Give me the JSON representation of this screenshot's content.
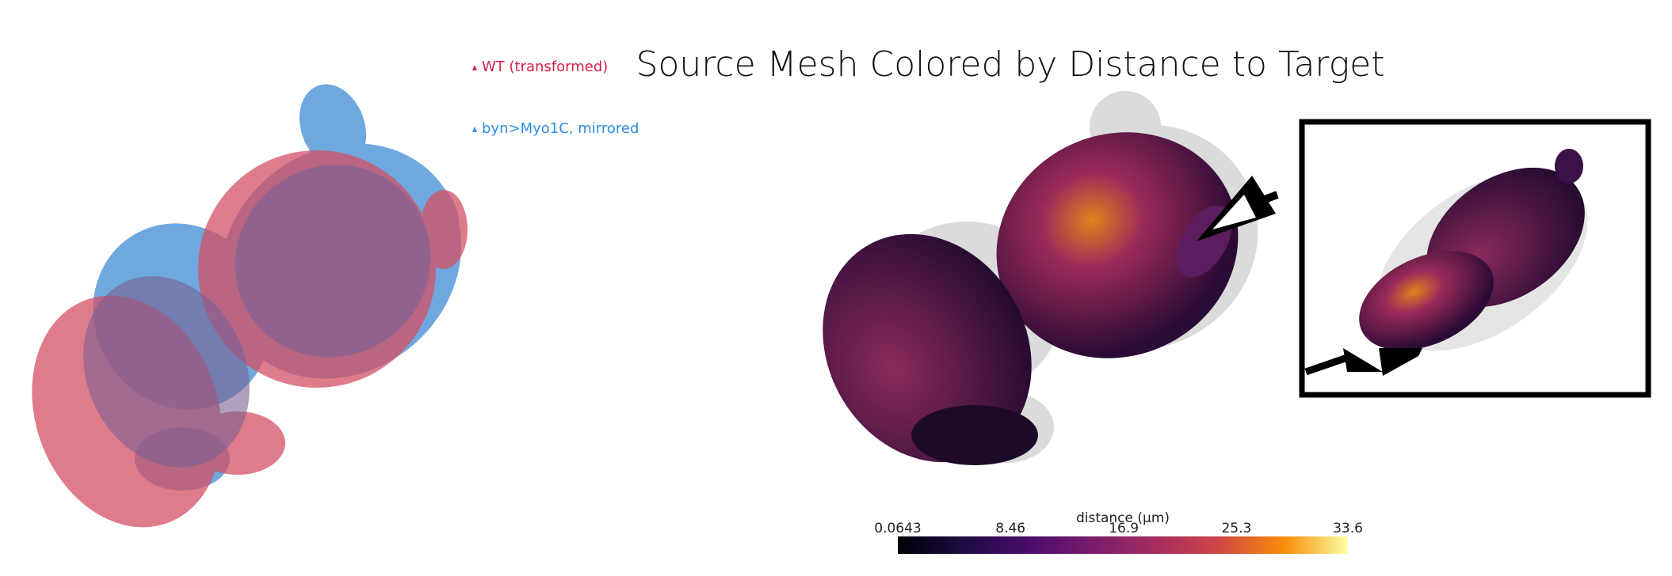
{
  "title": "Source Mesh Colored by Distance to Target",
  "legend": [
    {
      "label": "WT (transformed)",
      "color": "#d81e47"
    },
    {
      "label": "byn>Myo1C, mirrored",
      "color": "#2b8ee3"
    }
  ],
  "colorbar": {
    "label": "distance (µm)",
    "clim": [
      0.0643,
      33.6
    ],
    "ticks": [
      0.0643,
      8.46,
      16.9,
      25.3,
      33.6
    ]
  }
}
